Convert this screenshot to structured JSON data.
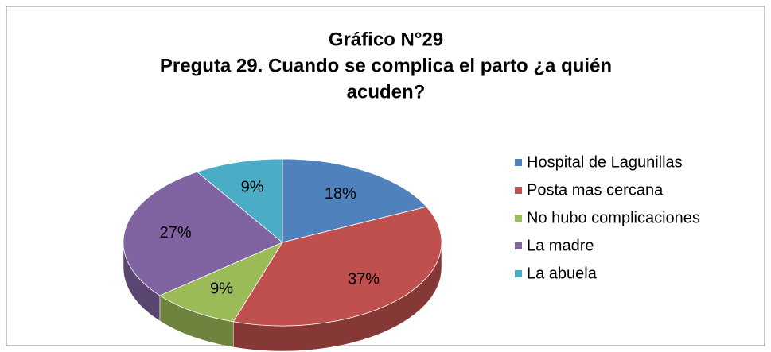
{
  "chart_data": {
    "type": "pie",
    "title": [
      "Gráfico N°29",
      "Preguta 29.  Cuando se complica el parto ¿a quién",
      "acuden?"
    ],
    "categories": [
      "Hospital de Lagunillas",
      "Posta mas cercana",
      "No hubo complicaciones",
      "La madre",
      "La abuela"
    ],
    "values": [
      18,
      37,
      9,
      27,
      9
    ],
    "value_labels": [
      "18%",
      "37%",
      "9%",
      "27%",
      "9%"
    ],
    "colors": [
      "#4f81bd",
      "#c0504d",
      "#9bbb59",
      "#8064a2",
      "#4bacc6"
    ],
    "legend": "right"
  }
}
